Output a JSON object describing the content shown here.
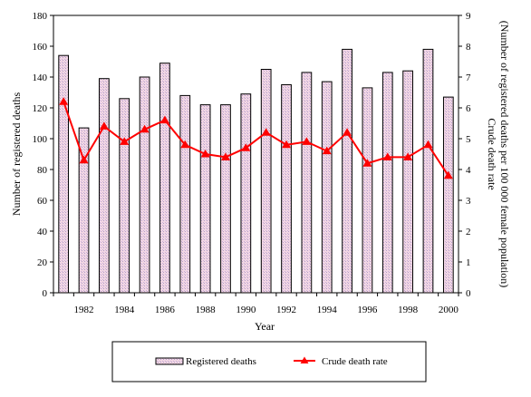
{
  "chart_data": {
    "type": "bar",
    "x": [
      1981,
      1982,
      1983,
      1984,
      1985,
      1986,
      1987,
      1988,
      1989,
      1990,
      1991,
      1992,
      1993,
      1994,
      1995,
      1996,
      1997,
      1998,
      1999,
      2000
    ],
    "x_tick_labels": [
      "1982",
      "1984",
      "1986",
      "1988",
      "1990",
      "1992",
      "1994",
      "1996",
      "1998",
      "2000"
    ],
    "series": [
      {
        "name": "Registered deaths",
        "type": "bar",
        "axis": "left",
        "values": [
          154,
          107,
          139,
          126,
          140,
          149,
          128,
          122,
          122,
          129,
          145,
          135,
          143,
          137,
          158,
          133,
          143,
          144,
          158,
          127
        ]
      },
      {
        "name": "Crude death rate",
        "type": "line",
        "axis": "right",
        "values": [
          6.2,
          4.3,
          5.4,
          4.9,
          5.3,
          5.6,
          4.8,
          4.5,
          4.4,
          4.7,
          5.2,
          4.8,
          4.9,
          4.6,
          5.2,
          4.2,
          4.4,
          4.4,
          4.8,
          3.8
        ]
      }
    ],
    "xlabel": "Year",
    "ylabel": "Number of registered deaths",
    "y2label_line1": "Crude death rate",
    "y2label_line2": "(Number of registered deaths per 100 000 female population)",
    "ylim": [
      0,
      180
    ],
    "y_ticks": [
      0,
      20,
      40,
      60,
      80,
      100,
      120,
      140,
      160,
      180
    ],
    "y2lim": [
      0,
      9
    ],
    "y2_ticks": [
      0,
      1,
      2,
      3,
      4,
      5,
      6,
      7,
      8,
      9
    ],
    "bar_fill": "#f2d6e4",
    "bar_hatch": "#b3a0c9",
    "line_color": "#ff0000",
    "legend_position": "bottom",
    "grid": false
  }
}
